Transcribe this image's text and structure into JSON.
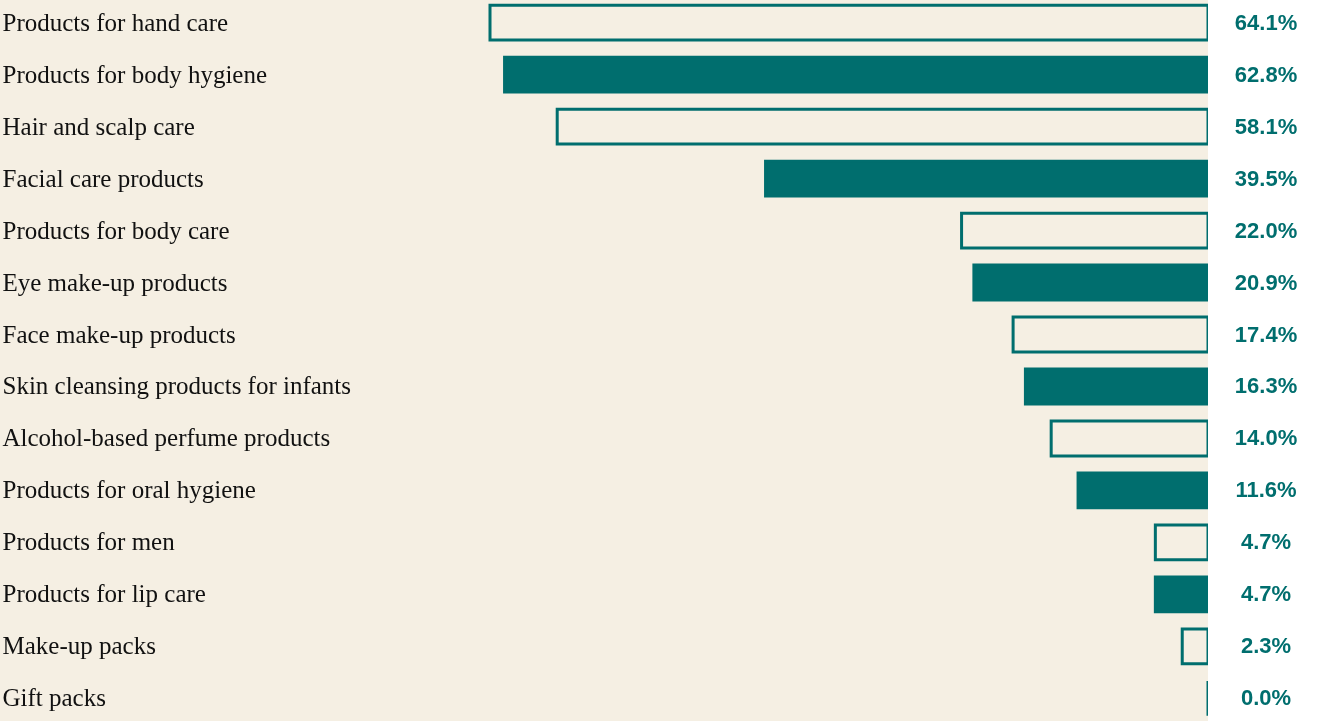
{
  "chart_data": {
    "type": "bar",
    "orientation": "horizontal",
    "categories": [
      "Products for hand care",
      "Products for body hygiene",
      "Hair and scalp care",
      "Facial care products",
      "Products for body care",
      "Eye make-up products",
      "Face make-up products",
      "Skin cleansing products for infants",
      "Alcohol-based perfume products",
      "Products for oral hygiene",
      "Products for men",
      "Products for lip care",
      "Make-up packs",
      "Gift packs"
    ],
    "values": [
      64.1,
      62.8,
      58.1,
      39.5,
      22.0,
      20.9,
      17.4,
      16.3,
      14.0,
      11.6,
      4.7,
      4.7,
      2.3,
      0.0
    ],
    "value_labels": [
      "64.1%",
      "62.8%",
      "58.1%",
      "39.5%",
      "22.0%",
      "20.9%",
      "17.4%",
      "16.3%",
      "14.0%",
      "11.6%",
      "4.7%",
      "4.7%",
      "2.3%",
      "0.0%"
    ],
    "color": "#006e6e"
  }
}
